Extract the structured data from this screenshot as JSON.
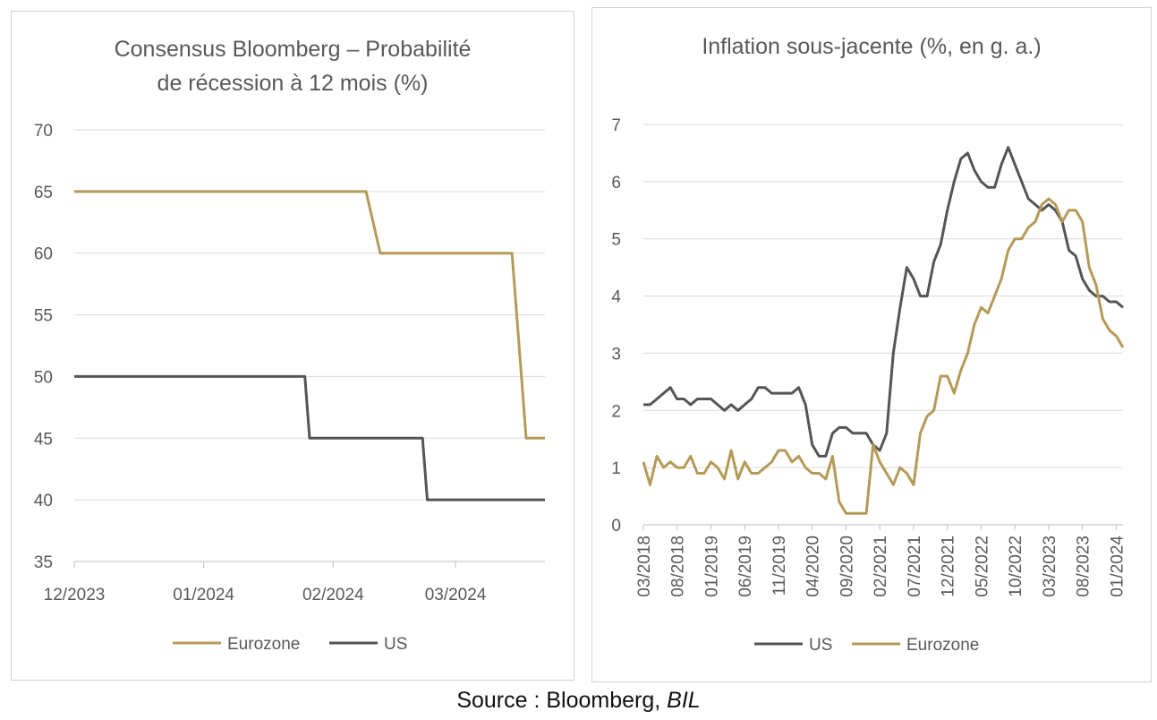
{
  "colors": {
    "eurozone": "#B59A57",
    "us": "#555555",
    "grid": "#D9D9D9",
    "axis": "#BFBFBF"
  },
  "source": {
    "prefix": "Source : Bloomberg, ",
    "italic": "BIL"
  },
  "chart_data": [
    {
      "type": "line",
      "title_lines": [
        "Consensus Bloomberg – Probabilité",
        "de récession à 12 mois (%)"
      ],
      "x_tick_labels": [
        "12/2023",
        "01/2024",
        "02/2024",
        "03/2024"
      ],
      "y_ticks": [
        35,
        40,
        45,
        50,
        55,
        60,
        65,
        70
      ],
      "ylim": [
        35,
        70
      ],
      "grid": true,
      "legend_position": "bottom",
      "x_range": [
        0,
        100
      ],
      "x_tick_positions": [
        0,
        27.5,
        55,
        81
      ],
      "series": [
        {
          "name": "Eurozone",
          "color": "#B59A57",
          "points": [
            [
              0,
              65
            ],
            [
              62,
              65
            ],
            [
              65,
              60
            ],
            [
              93,
              60
            ],
            [
              96,
              45
            ],
            [
              100,
              45
            ]
          ]
        },
        {
          "name": "US",
          "color": "#555555",
          "points": [
            [
              0,
              50
            ],
            [
              49,
              50
            ],
            [
              50,
              45
            ],
            [
              74,
              45
            ],
            [
              75,
              40
            ],
            [
              100,
              40
            ]
          ]
        }
      ]
    },
    {
      "type": "line",
      "title_lines": [
        "Inflation sous-jacente (%, en g. a.)"
      ],
      "x_tick_labels": [
        "03/2018",
        "08/2018",
        "01/2019",
        "06/2019",
        "11/2019",
        "04/2020",
        "09/2020",
        "02/2021",
        "07/2021",
        "12/2021",
        "05/2022",
        "10/2022",
        "03/2023",
        "08/2023",
        "01/2024"
      ],
      "y_ticks": [
        0,
        1,
        2,
        3,
        4,
        5,
        6,
        7
      ],
      "ylim": [
        0,
        7
      ],
      "grid": true,
      "legend_position": "bottom",
      "x_start": "03/2018",
      "x_end": "04/2024",
      "series": [
        {
          "name": "US",
          "color": "#555555",
          "values": [
            2.1,
            2.1,
            2.2,
            2.3,
            2.4,
            2.2,
            2.2,
            2.1,
            2.2,
            2.2,
            2.2,
            2.1,
            2.0,
            2.1,
            2.0,
            2.1,
            2.2,
            2.4,
            2.4,
            2.3,
            2.3,
            2.3,
            2.3,
            2.4,
            2.1,
            1.4,
            1.2,
            1.2,
            1.6,
            1.7,
            1.7,
            1.6,
            1.6,
            1.6,
            1.4,
            1.3,
            1.6,
            3.0,
            3.8,
            4.5,
            4.3,
            4.0,
            4.0,
            4.6,
            4.9,
            5.5,
            6.0,
            6.4,
            6.5,
            6.2,
            6.0,
            5.9,
            5.9,
            6.3,
            6.6,
            6.3,
            6.0,
            5.7,
            5.6,
            5.5,
            5.6,
            5.5,
            5.3,
            4.8,
            4.7,
            4.3,
            4.1,
            4.0,
            4.0,
            3.9,
            3.9,
            3.8
          ]
        },
        {
          "name": "Eurozone",
          "color": "#B59A57",
          "values": [
            1.1,
            0.7,
            1.2,
            1.0,
            1.1,
            1.0,
            1.0,
            1.2,
            0.9,
            0.9,
            1.1,
            1.0,
            0.8,
            1.3,
            0.8,
            1.1,
            0.9,
            0.9,
            1.0,
            1.1,
            1.3,
            1.3,
            1.1,
            1.2,
            1.0,
            0.9,
            0.9,
            0.8,
            1.2,
            0.4,
            0.2,
            0.2,
            0.2,
            0.2,
            1.4,
            1.1,
            0.9,
            0.7,
            1.0,
            0.9,
            0.7,
            1.6,
            1.9,
            2.0,
            2.6,
            2.6,
            2.3,
            2.7,
            3.0,
            3.5,
            3.8,
            3.7,
            4.0,
            4.3,
            4.8,
            5.0,
            5.0,
            5.2,
            5.3,
            5.6,
            5.7,
            5.6,
            5.3,
            5.5,
            5.5,
            5.3,
            4.5,
            4.2,
            3.6,
            3.4,
            3.3,
            3.1
          ]
        }
      ]
    }
  ]
}
